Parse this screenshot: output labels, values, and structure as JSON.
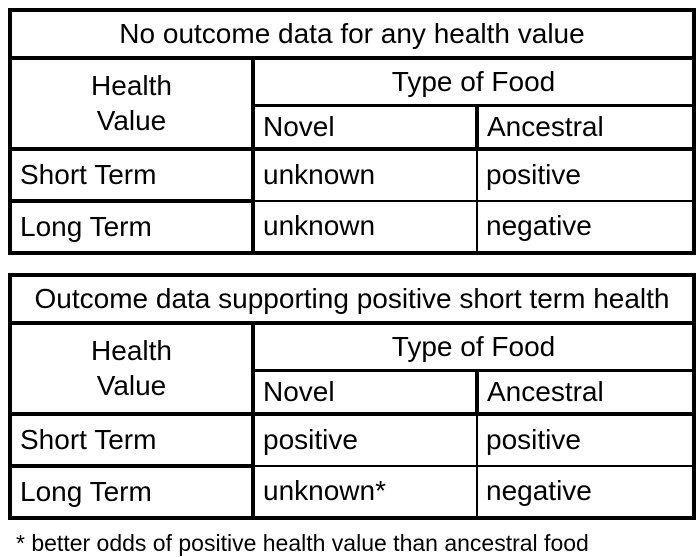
{
  "page": {
    "background_color": "#ffffff",
    "border_color": "#000000",
    "text_color": "#000000"
  },
  "tables": [
    {
      "title": "No outcome data for any health value",
      "corner_header": "Health\nValue",
      "food_header": "Type of Food",
      "columns": [
        "Novel",
        "Ancestral"
      ],
      "rows": [
        {
          "label": "Short Term",
          "novel": "unknown",
          "ancestral": "positive"
        },
        {
          "label": "Long Term",
          "novel": "unknown",
          "ancestral": "negative"
        }
      ]
    },
    {
      "title": "Outcome data supporting positive short term health",
      "corner_header": "Health\nValue",
      "food_header": "Type of Food",
      "columns": [
        "Novel",
        "Ancestral"
      ],
      "rows": [
        {
          "label": "Short Term",
          "novel": "positive",
          "ancestral": "positive"
        },
        {
          "label": "Long Term",
          "novel": "unknown*",
          "ancestral": "negative"
        }
      ]
    }
  ],
  "footnote": "* better odds of positive health value than ancestral food"
}
